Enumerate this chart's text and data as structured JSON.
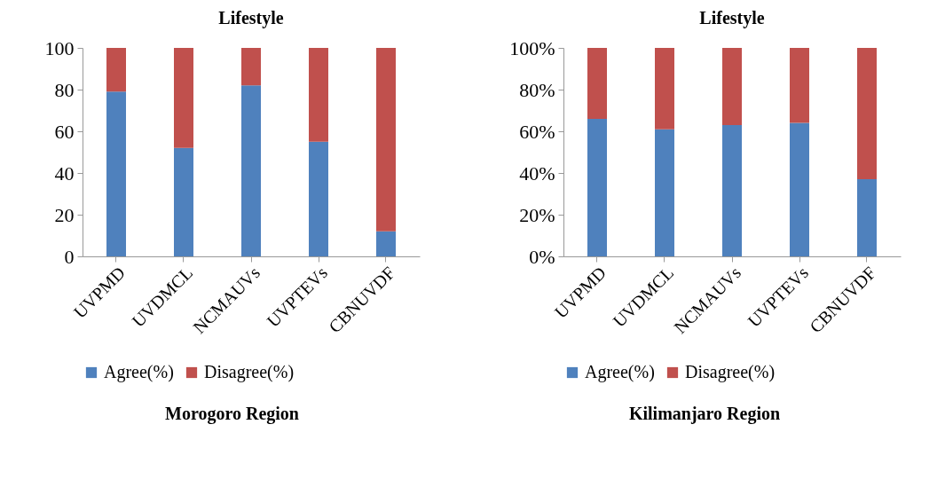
{
  "chart_data": [
    {
      "type": "bar",
      "title": "Lifestyle",
      "categories": [
        "UVPMD",
        "UVDMCL",
        "NCMAUVs",
        "UVPTEVs",
        "CBNUVDF"
      ],
      "stacked": true,
      "series": [
        {
          "name": "Agree(%)",
          "color": "#4f81bd",
          "values": [
            79,
            52,
            82,
            55,
            12
          ]
        },
        {
          "name": "Disagree(%)",
          "color": "#c0504d",
          "values": [
            21,
            48,
            18,
            45,
            88
          ]
        }
      ],
      "ylim": [
        0,
        100
      ],
      "yticks": [
        0,
        20,
        40,
        60,
        80,
        100
      ],
      "grid": false,
      "legend": "bottom",
      "annotations": [
        "Morogoro Region"
      ]
    },
    {
      "type": "bar",
      "title": "Lifestyle",
      "categories": [
        "UVPMD",
        "UVDMCL",
        "NCMAUVs",
        "UVPTEVs",
        "CBNUVDF"
      ],
      "stacked": true,
      "series": [
        {
          "name": "Agree(%)",
          "color": "#4f81bd",
          "values": [
            66,
            61,
            63,
            64,
            37
          ]
        },
        {
          "name": "Disagree(%)",
          "color": "#c0504d",
          "values": [
            34,
            39,
            37,
            36,
            63
          ]
        }
      ],
      "ylim": [
        0,
        100
      ],
      "yticks": [
        {
          "value": 0,
          "label": "0%"
        },
        {
          "value": 20,
          "label": "20%"
        },
        {
          "value": 40,
          "label": "40%"
        },
        {
          "value": 60,
          "label": "60%"
        },
        {
          "value": 80,
          "label": "80%"
        },
        {
          "value": 100,
          "label": "100%"
        }
      ],
      "grid": false,
      "legend": "bottom",
      "annotations": [
        "Kilimanjaro Region"
      ]
    }
  ]
}
